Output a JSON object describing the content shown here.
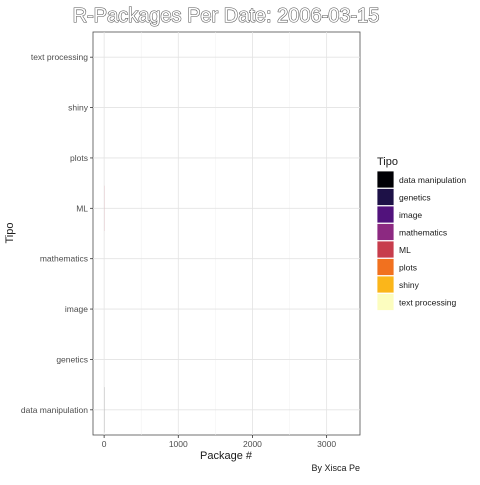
{
  "chart_data": {
    "type": "bar",
    "orientation": "horizontal",
    "title": "R-Packages Per Date: 2006-03-15",
    "xlabel": "Package #",
    "ylabel": "Tipo",
    "caption": "By Xisca Pe",
    "categories": [
      "data manipulation",
      "genetics",
      "image",
      "mathematics",
      "ML",
      "plots",
      "shiny",
      "text processing"
    ],
    "values": [
      1,
      0,
      0,
      0,
      1,
      0,
      0,
      0
    ],
    "xlim": [
      -150,
      3450
    ],
    "xticks": [
      0,
      1000,
      2000,
      3000
    ],
    "xtick_labels": [
      "0",
      "1000",
      "2000",
      "3000"
    ],
    "grid": true,
    "legend": {
      "title": "Tipo",
      "position": "right",
      "entries": [
        {
          "label": "data manipulation",
          "color": "#000004"
        },
        {
          "label": "genetics",
          "color": "#1d1147"
        },
        {
          "label": "image",
          "color": "#51127c"
        },
        {
          "label": "mathematics",
          "color": "#8c2981"
        },
        {
          "label": "ML",
          "color": "#c73d4c"
        },
        {
          "label": "plots",
          "color": "#f1711f"
        },
        {
          "label": "shiny",
          "color": "#fbb61a"
        },
        {
          "label": "text processing",
          "color": "#fcfdbf"
        }
      ]
    }
  }
}
